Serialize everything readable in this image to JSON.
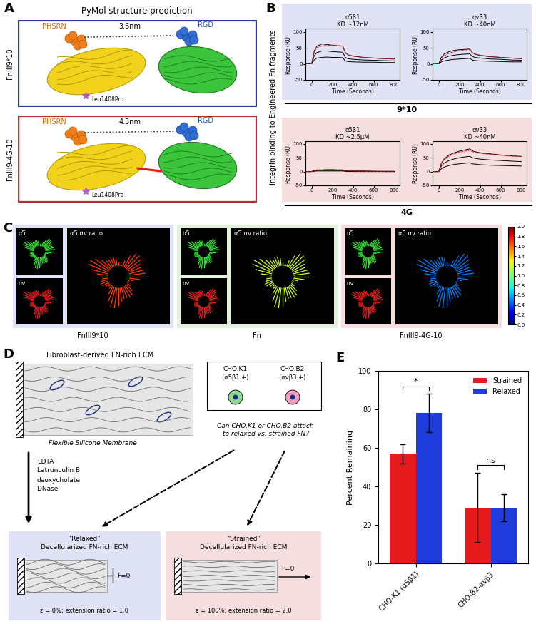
{
  "panel_labels": [
    "A",
    "B",
    "C",
    "D",
    "E"
  ],
  "panel_a": {
    "title": "PyMol structure prediction",
    "structures": [
      {
        "name": "FnIII9*10",
        "motif1": "PHSRN",
        "motif2": "RGD",
        "distance": "3.6nm",
        "mutation": "Leu1408Pro"
      },
      {
        "name": "FnIII9-4G-10",
        "motif1": "PHSRN",
        "motif2": "RGD",
        "distance": "4.3nm",
        "mutation": "Leu1408Pro"
      }
    ]
  },
  "panel_b": {
    "side_label": "Integrin binding to Engineered Fn fragments",
    "group_labels": [
      "9*10",
      "4G"
    ]
  },
  "chart_data": [
    {
      "type": "line",
      "title": "α5β1",
      "subtitle": "KD ~12nM",
      "xlabel": "Time (Seconds)",
      "ylabel": "Response (RU)",
      "x": [
        -50,
        0,
        25,
        50,
        100,
        150,
        200,
        250,
        300,
        325,
        350,
        400,
        500,
        600,
        700,
        800
      ],
      "series": [
        {
          "color": "#000000",
          "line_style": "solid",
          "values": [
            0,
            0,
            40,
            55,
            62,
            60,
            58,
            56,
            55,
            35,
            28,
            24,
            20,
            18,
            16,
            15
          ]
        },
        {
          "color": "#000000",
          "line_style": "solid",
          "values": [
            0,
            0,
            25,
            35,
            40,
            40,
            38,
            37,
            36,
            20,
            16,
            14,
            12,
            11,
            10,
            9
          ]
        },
        {
          "color": "#000000",
          "line_style": "solid",
          "values": [
            0,
            0,
            12,
            18,
            20,
            21,
            20,
            20,
            19,
            9,
            7,
            6,
            5,
            5,
            4,
            4
          ]
        },
        {
          "color": "#e41a1c",
          "line_style": "dashed",
          "values": [
            0,
            0,
            38,
            50,
            56,
            58,
            58,
            57,
            56,
            34,
            28,
            24,
            20,
            18,
            16,
            15
          ]
        }
      ],
      "xlim": [
        -60,
        850
      ],
      "xticks": [
        0,
        200,
        400,
        600,
        800
      ],
      "ylim": [
        -50,
        110
      ],
      "yticks": [
        -50,
        0,
        50,
        100
      ]
    },
    {
      "type": "line",
      "title": "αvβ3",
      "subtitle": "KD ~40nM",
      "xlabel": "Time (Seconds)",
      "ylabel": "Response (RU)",
      "x": [
        -50,
        0,
        25,
        50,
        100,
        150,
        200,
        250,
        300,
        325,
        350,
        400,
        500,
        600,
        700,
        800
      ],
      "series": [
        {
          "color": "#000000",
          "line_style": "solid",
          "values": [
            0,
            0,
            20,
            30,
            38,
            42,
            44,
            45,
            46,
            35,
            30,
            26,
            22,
            20,
            18,
            16
          ]
        },
        {
          "color": "#000000",
          "line_style": "solid",
          "values": [
            0,
            0,
            12,
            18,
            24,
            27,
            29,
            30,
            31,
            23,
            20,
            18,
            15,
            14,
            12,
            11
          ]
        },
        {
          "color": "#000000",
          "line_style": "solid",
          "values": [
            0,
            0,
            6,
            9,
            12,
            14,
            15,
            16,
            17,
            12,
            10,
            9,
            8,
            7,
            6,
            6
          ]
        },
        {
          "color": "#e41a1c",
          "line_style": "dashed",
          "values": [
            0,
            0,
            16,
            25,
            33,
            38,
            41,
            43,
            44,
            34,
            30,
            27,
            23,
            20,
            18,
            16
          ]
        }
      ],
      "xlim": [
        -60,
        850
      ],
      "xticks": [
        0,
        200,
        400,
        600,
        800
      ],
      "ylim": [
        -50,
        110
      ],
      "yticks": [
        -50,
        0,
        50,
        100
      ]
    },
    {
      "type": "line",
      "title": "α5β1",
      "subtitle": "KD ~2.5μM",
      "xlabel": "Time (Seconds)",
      "ylabel": "Response (RU)",
      "x": [
        -50,
        0,
        25,
        50,
        100,
        150,
        200,
        250,
        300,
        325,
        350,
        400,
        500,
        600,
        700,
        800
      ],
      "series": [
        {
          "color": "#000000",
          "line_style": "solid",
          "values": [
            0,
            0,
            5,
            6,
            6,
            7,
            7,
            6,
            6,
            3,
            2,
            2,
            2,
            1,
            1,
            1
          ]
        },
        {
          "color": "#000000",
          "line_style": "solid",
          "values": [
            0,
            0,
            3,
            4,
            4,
            4,
            4,
            4,
            4,
            2,
            1,
            1,
            1,
            1,
            0,
            0
          ]
        },
        {
          "color": "#000000",
          "line_style": "solid",
          "values": [
            0,
            0,
            1,
            2,
            2,
            2,
            2,
            2,
            2,
            1,
            0,
            0,
            0,
            0,
            0,
            0
          ]
        },
        {
          "color": "#e41a1c",
          "line_style": "dashed",
          "values": [
            0,
            0,
            4,
            5,
            5,
            6,
            6,
            6,
            6,
            3,
            2,
            2,
            1,
            1,
            1,
            1
          ]
        }
      ],
      "xlim": [
        -60,
        850
      ],
      "xticks": [
        0,
        200,
        400,
        600,
        800
      ],
      "ylim": [
        -50,
        110
      ],
      "yticks": [
        -50,
        0,
        50,
        100
      ]
    },
    {
      "type": "line",
      "title": "αvβ3",
      "subtitle": "KD ~40nM",
      "xlabel": "Time (Seconds)",
      "ylabel": "Response (RU)",
      "x": [
        -50,
        0,
        25,
        50,
        100,
        150,
        200,
        250,
        300,
        325,
        350,
        400,
        500,
        600,
        700,
        800
      ],
      "series": [
        {
          "color": "#000000",
          "line_style": "solid",
          "values": [
            0,
            0,
            30,
            45,
            60,
            68,
            74,
            78,
            82,
            75,
            72,
            68,
            64,
            60,
            57,
            55
          ]
        },
        {
          "color": "#000000",
          "line_style": "solid",
          "values": [
            0,
            0,
            20,
            30,
            40,
            46,
            50,
            53,
            55,
            50,
            48,
            45,
            42,
            40,
            38,
            36
          ]
        },
        {
          "color": "#000000",
          "line_style": "solid",
          "values": [
            0,
            0,
            10,
            16,
            22,
            26,
            28,
            30,
            32,
            28,
            27,
            25,
            23,
            22,
            21,
            20
          ]
        },
        {
          "color": "#e41a1c",
          "line_style": "dashed",
          "values": [
            0,
            0,
            28,
            42,
            56,
            64,
            70,
            74,
            77,
            72,
            69,
            66,
            62,
            59,
            56,
            54
          ]
        }
      ],
      "xlim": [
        -60,
        850
      ],
      "xticks": [
        0,
        200,
        400,
        600,
        800
      ],
      "ylim": [
        -50,
        110
      ],
      "yticks": [
        -50,
        0,
        50,
        100
      ]
    },
    {
      "type": "bar",
      "ylabel": "Percent Remaining",
      "categories": [
        "CHO-K1 (α5β1)",
        "CHO-B2-αvβ3"
      ],
      "series": [
        {
          "name": "Strained",
          "color": "#e41a1c",
          "values": [
            57,
            29
          ],
          "errors": [
            5,
            18
          ]
        },
        {
          "name": "Relaxed",
          "color": "#1f3bdc",
          "values": [
            78,
            29
          ],
          "errors": [
            10,
            7
          ]
        }
      ],
      "ylim": [
        0,
        100
      ],
      "yticks": [
        0,
        20,
        40,
        60,
        80,
        100
      ],
      "legend": "upper right",
      "significance": [
        "*",
        "ns"
      ]
    }
  ],
  "panel_c": {
    "colorbar": {
      "range": [
        0,
        2
      ],
      "ticks": [
        {
          "value": 0,
          "label": "0.0"
        },
        {
          "value": 0.2,
          "label": "0.2"
        },
        {
          "value": 0.4,
          "label": "0.4"
        },
        {
          "value": 0.6,
          "label": "0.6"
        },
        {
          "value": 0.8,
          "label": "0.8"
        },
        {
          "value": 1,
          "label": "1.0"
        },
        {
          "value": 1.2,
          "label": "1.2"
        },
        {
          "value": 1.4,
          "label": "1.4"
        },
        {
          "value": 1.6,
          "label": "1.6"
        },
        {
          "value": 1.8,
          "label": "1.8"
        },
        {
          "value": 2,
          "label": "2.0"
        }
      ]
    },
    "panels": [
      {
        "name": "FnIII9*10",
        "channels": [
          "α5",
          "αv"
        ],
        "ratio_label": "α5:αv ratio",
        "ratio": 1.7
      },
      {
        "name": "Fn",
        "channels": [
          "α5",
          "αv"
        ],
        "ratio_label": "α5:αv ratio",
        "ratio": 1.2
      },
      {
        "name": "FnIII9-4G-10",
        "channels": [
          "α5",
          "αv"
        ],
        "ratio_label": "α5:αv ratio",
        "ratio": 0.5
      }
    ]
  },
  "panel_d": {
    "source_title": "Fibroblast-derived FN-rich ECM",
    "membrane_label": "Flexible Silicone Membrane",
    "treatments": [
      "EDTA",
      "Latrunculin B",
      "deoxycholate",
      "DNase I"
    ],
    "cell_lines": [
      {
        "name": "CHO.K1",
        "integrin": "(α5β1 +)",
        "color": "#8fd68f"
      },
      {
        "name": "CHO.B2",
        "integrin": "(αvβ3 +)",
        "color": "#f29cbf"
      }
    ],
    "question": "Can CHO.K1 or CHO.B2 attach to relaxed vs. strained FN?",
    "relaxed": {
      "title1": "\"Relaxed\"",
      "title2": "Decellularized FN-rich ECM",
      "strain": "ε = 0%; extension ratio = 1.0",
      "force": "F=0"
    },
    "strained": {
      "title1": "\"Strained\"",
      "title2": "Decellularized FN-rich ECM",
      "strain": "ε = 100%; extension ratio = 2.0",
      "force": "F=0"
    }
  }
}
